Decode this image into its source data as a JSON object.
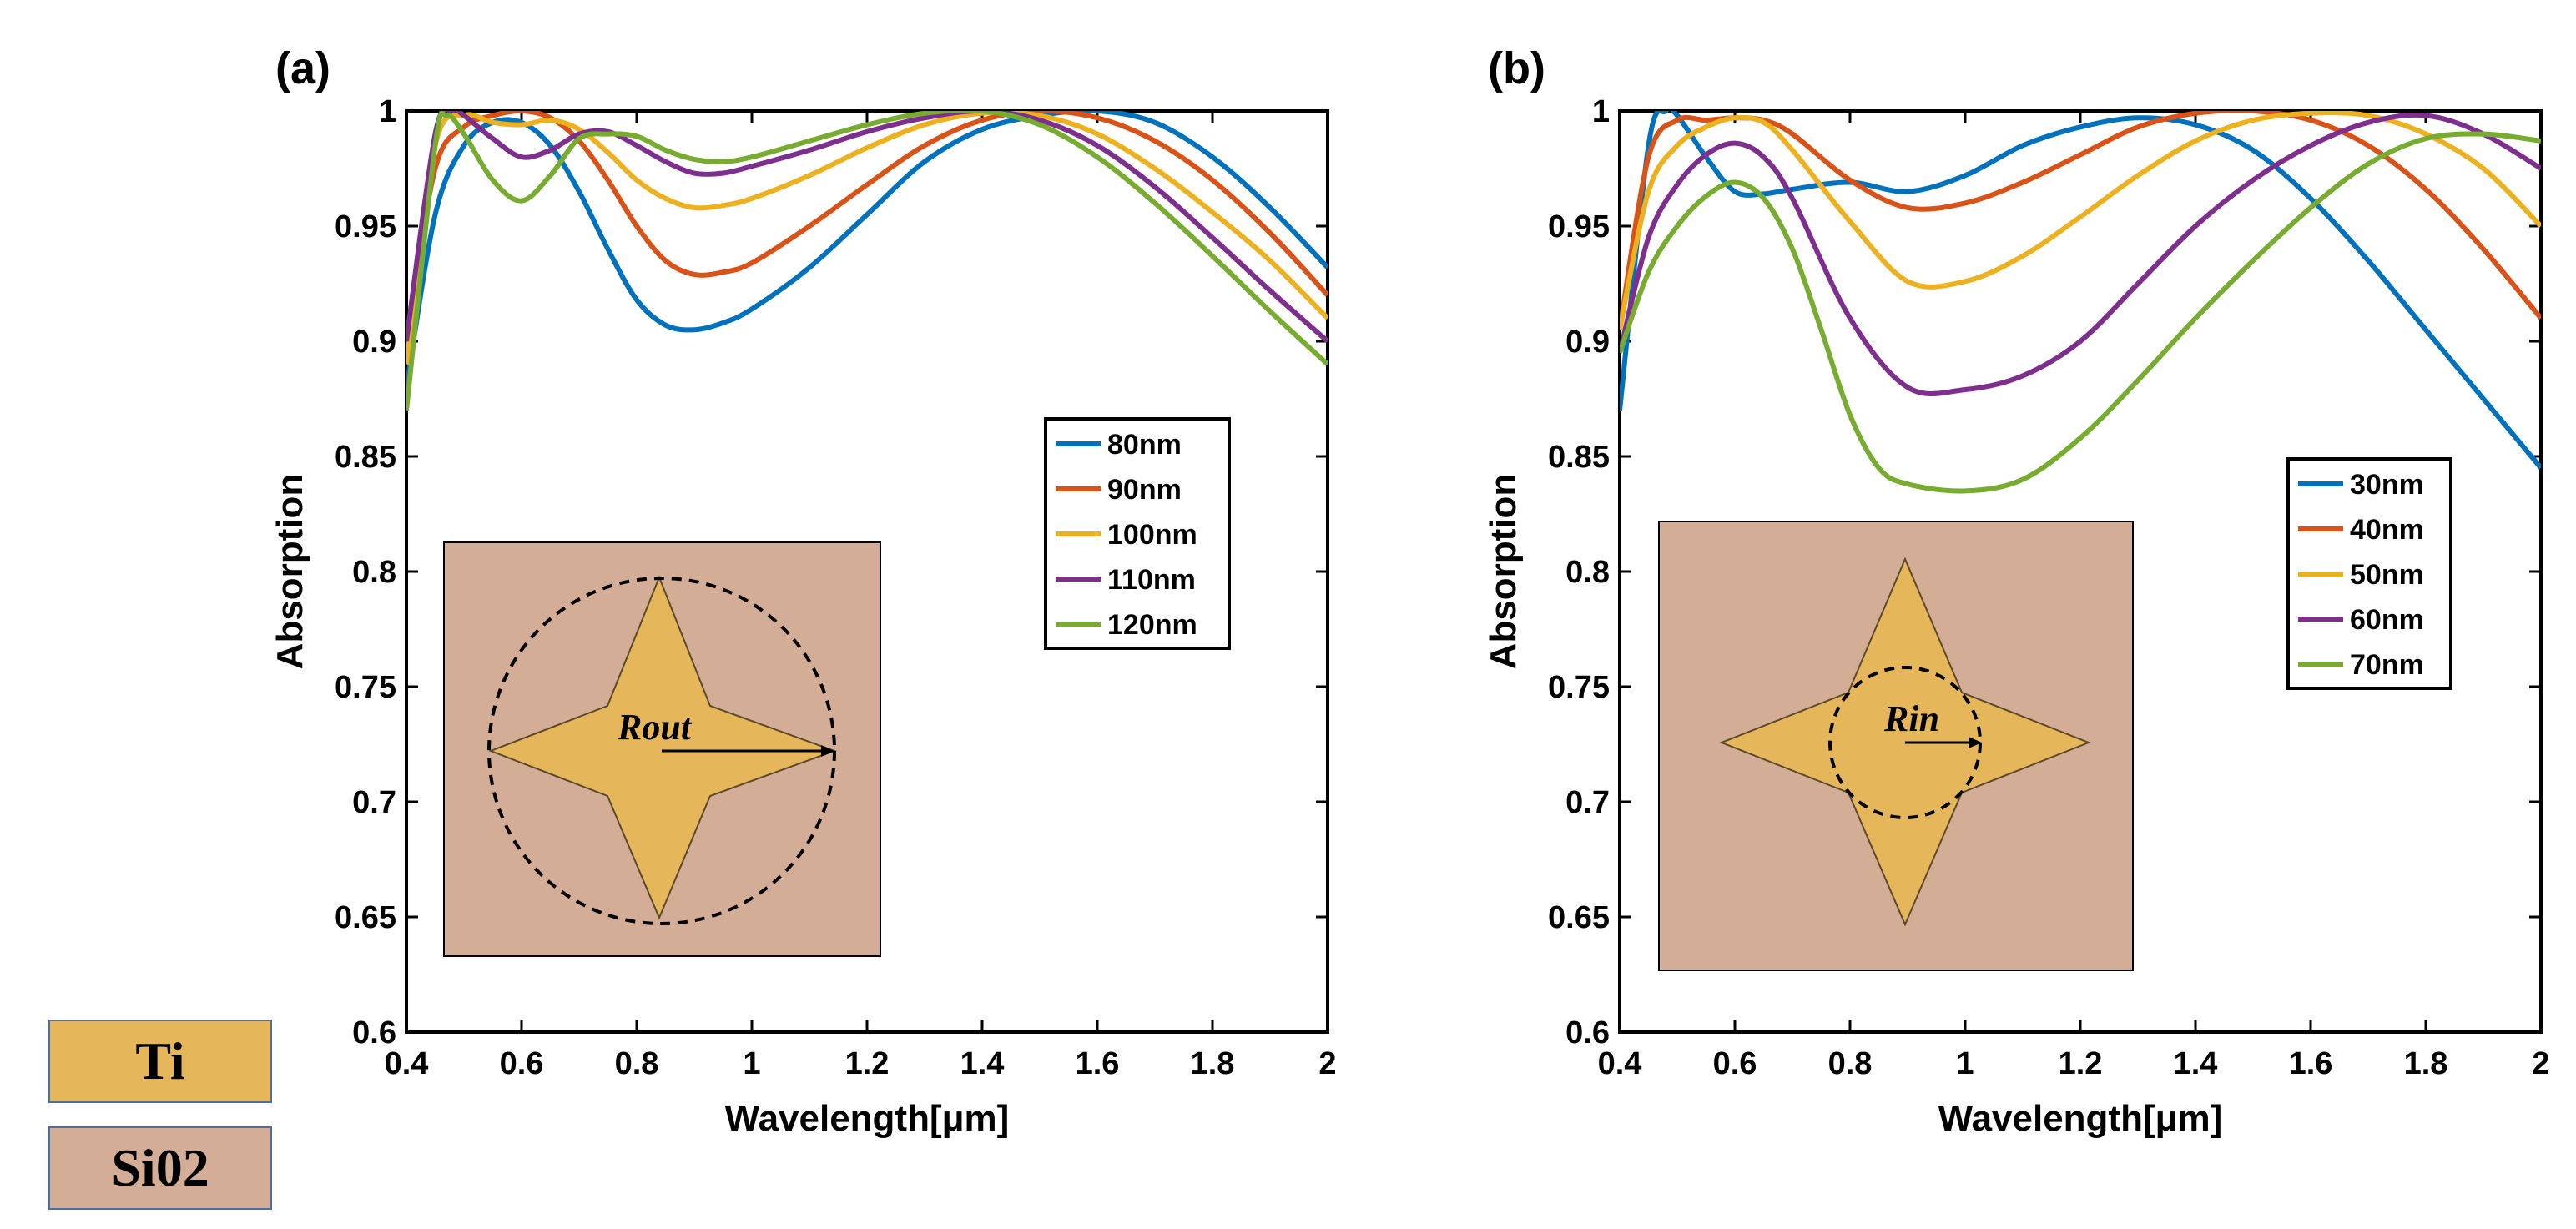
{
  "colors": {
    "series": [
      "#0072BD",
      "#D95319",
      "#EDB120",
      "#7E2F8E",
      "#77AC30"
    ],
    "ti": "#E6B65A",
    "sio2": "#D4AD96"
  },
  "chart_data": [
    {
      "type": "line",
      "panel_label": "(a)",
      "xlabel": "Wavelength[μm]",
      "ylabel": "Absorption",
      "xlim": [
        0.4,
        2
      ],
      "ylim": [
        0.6,
        1
      ],
      "xticks": [
        0.4,
        0.6,
        0.8,
        1,
        1.2,
        1.4,
        1.6,
        1.8,
        2
      ],
      "yticks": [
        0.6,
        0.65,
        0.7,
        0.75,
        0.8,
        0.85,
        0.9,
        0.95,
        1
      ],
      "legend_position": "right-middle",
      "inset_label": "Rout",
      "series": [
        {
          "name": "80nm",
          "x": [
            0.4,
            0.45,
            0.5,
            0.55,
            0.6,
            0.65,
            0.7,
            0.75,
            0.8,
            0.85,
            0.9,
            0.95,
            1.0,
            1.1,
            1.2,
            1.3,
            1.4,
            1.5,
            1.6,
            1.7,
            1.8,
            1.9,
            2.0
          ],
          "y": [
            0.88,
            0.955,
            0.985,
            0.995,
            0.995,
            0.985,
            0.965,
            0.94,
            0.918,
            0.907,
            0.905,
            0.908,
            0.914,
            0.932,
            0.955,
            0.978,
            0.992,
            0.998,
            1.0,
            0.995,
            0.98,
            0.958,
            0.932
          ]
        },
        {
          "name": "90nm",
          "x": [
            0.4,
            0.45,
            0.5,
            0.55,
            0.6,
            0.65,
            0.7,
            0.75,
            0.8,
            0.85,
            0.9,
            0.95,
            1.0,
            1.1,
            1.2,
            1.3,
            1.4,
            1.5,
            1.6,
            1.7,
            1.8,
            1.9,
            2.0
          ],
          "y": [
            0.9,
            0.975,
            0.993,
            0.998,
            1.0,
            0.997,
            0.987,
            0.97,
            0.95,
            0.935,
            0.929,
            0.93,
            0.934,
            0.95,
            0.968,
            0.985,
            0.996,
            1.0,
            0.997,
            0.987,
            0.97,
            0.947,
            0.92
          ]
        },
        {
          "name": "100nm",
          "x": [
            0.4,
            0.45,
            0.5,
            0.55,
            0.6,
            0.65,
            0.7,
            0.75,
            0.8,
            0.85,
            0.9,
            0.95,
            1.0,
            1.1,
            1.2,
            1.3,
            1.4,
            1.5,
            1.6,
            1.7,
            1.8,
            1.9,
            2.0
          ],
          "y": [
            0.89,
            0.985,
            0.998,
            0.995,
            0.994,
            0.996,
            0.992,
            0.982,
            0.97,
            0.962,
            0.958,
            0.959,
            0.962,
            0.972,
            0.984,
            0.994,
            0.999,
            0.998,
            0.99,
            0.975,
            0.956,
            0.935,
            0.91
          ]
        },
        {
          "name": "110nm",
          "x": [
            0.4,
            0.45,
            0.48,
            0.5,
            0.55,
            0.6,
            0.65,
            0.7,
            0.75,
            0.8,
            0.85,
            0.9,
            0.95,
            1.0,
            1.1,
            1.2,
            1.3,
            1.4,
            1.5,
            1.6,
            1.7,
            1.8,
            1.9,
            2.0
          ],
          "y": [
            0.9,
            0.99,
            1.0,
            0.998,
            0.988,
            0.98,
            0.983,
            0.99,
            0.991,
            0.985,
            0.978,
            0.973,
            0.973,
            0.976,
            0.983,
            0.991,
            0.997,
            1.0,
            0.996,
            0.985,
            0.967,
            0.945,
            0.922,
            0.9
          ]
        },
        {
          "name": "120nm",
          "x": [
            0.4,
            0.45,
            0.47,
            0.5,
            0.55,
            0.6,
            0.65,
            0.7,
            0.75,
            0.8,
            0.85,
            0.9,
            0.95,
            1.0,
            1.1,
            1.2,
            1.3,
            1.4,
            1.5,
            1.6,
            1.7,
            1.8,
            1.9,
            2.0
          ],
          "y": [
            0.87,
            0.985,
            0.998,
            0.99,
            0.97,
            0.961,
            0.972,
            0.988,
            0.99,
            0.989,
            0.983,
            0.979,
            0.978,
            0.98,
            0.987,
            0.994,
            0.999,
            1.0,
            0.994,
            0.98,
            0.96,
            0.937,
            0.913,
            0.89
          ]
        }
      ]
    },
    {
      "type": "line",
      "panel_label": "(b)",
      "xlabel": "Wavelength[μm]",
      "ylabel": "Absorption",
      "xlim": [
        0.4,
        2
      ],
      "ylim": [
        0.6,
        1
      ],
      "xticks": [
        0.4,
        0.6,
        0.8,
        1,
        1.2,
        1.4,
        1.6,
        1.8,
        2
      ],
      "yticks": [
        0.6,
        0.65,
        0.7,
        0.75,
        0.8,
        0.85,
        0.9,
        0.95,
        1
      ],
      "legend_position": "right-middle",
      "inset_label": "Rin",
      "series": [
        {
          "name": "30nm",
          "x": [
            0.4,
            0.45,
            0.48,
            0.5,
            0.55,
            0.6,
            0.65,
            0.7,
            0.8,
            0.9,
            1.0,
            1.1,
            1.2,
            1.3,
            1.4,
            1.5,
            1.6,
            1.7,
            1.8,
            1.9,
            2.0
          ],
          "y": [
            0.87,
            0.985,
            1.0,
            0.998,
            0.98,
            0.965,
            0.964,
            0.966,
            0.969,
            0.965,
            0.972,
            0.985,
            0.993,
            0.997,
            0.994,
            0.983,
            0.962,
            0.935,
            0.905,
            0.875,
            0.845
          ]
        },
        {
          "name": "40nm",
          "x": [
            0.4,
            0.45,
            0.5,
            0.55,
            0.6,
            0.65,
            0.7,
            0.8,
            0.9,
            1.0,
            1.1,
            1.2,
            1.3,
            1.4,
            1.5,
            1.6,
            1.7,
            1.8,
            1.9,
            2.0
          ],
          "y": [
            0.905,
            0.98,
            0.996,
            0.996,
            0.997,
            0.996,
            0.99,
            0.97,
            0.958,
            0.96,
            0.969,
            0.981,
            0.993,
            0.999,
            1.0,
            0.996,
            0.985,
            0.966,
            0.94,
            0.91
          ]
        },
        {
          "name": "50nm",
          "x": [
            0.4,
            0.45,
            0.5,
            0.55,
            0.6,
            0.65,
            0.7,
            0.8,
            0.9,
            1.0,
            1.1,
            1.2,
            1.3,
            1.4,
            1.5,
            1.6,
            1.7,
            1.8,
            1.9,
            2.0
          ],
          "y": [
            0.905,
            0.965,
            0.985,
            0.993,
            0.997,
            0.995,
            0.983,
            0.952,
            0.926,
            0.926,
            0.937,
            0.954,
            0.972,
            0.987,
            0.996,
            0.999,
            0.998,
            0.99,
            0.975,
            0.95
          ]
        },
        {
          "name": "60nm",
          "x": [
            0.4,
            0.45,
            0.5,
            0.55,
            0.6,
            0.65,
            0.7,
            0.8,
            0.9,
            1.0,
            1.1,
            1.2,
            1.3,
            1.4,
            1.5,
            1.6,
            1.7,
            1.8,
            1.9,
            2.0
          ],
          "y": [
            0.895,
            0.945,
            0.968,
            0.981,
            0.986,
            0.98,
            0.962,
            0.91,
            0.88,
            0.879,
            0.885,
            0.9,
            0.925,
            0.95,
            0.97,
            0.985,
            0.995,
            0.998,
            0.99,
            0.975
          ]
        },
        {
          "name": "70nm",
          "x": [
            0.4,
            0.45,
            0.5,
            0.55,
            0.6,
            0.65,
            0.7,
            0.75,
            0.8,
            0.85,
            0.9,
            1.0,
            1.1,
            1.2,
            1.3,
            1.4,
            1.5,
            1.6,
            1.7,
            1.8,
            1.9,
            2.0
          ],
          "y": [
            0.895,
            0.93,
            0.95,
            0.963,
            0.969,
            0.962,
            0.94,
            0.905,
            0.868,
            0.845,
            0.838,
            0.835,
            0.84,
            0.858,
            0.883,
            0.91,
            0.935,
            0.958,
            0.977,
            0.988,
            0.99,
            0.987
          ]
        }
      ]
    }
  ],
  "materials": {
    "ti_label": "Ti",
    "sio2_label": "Si02"
  }
}
